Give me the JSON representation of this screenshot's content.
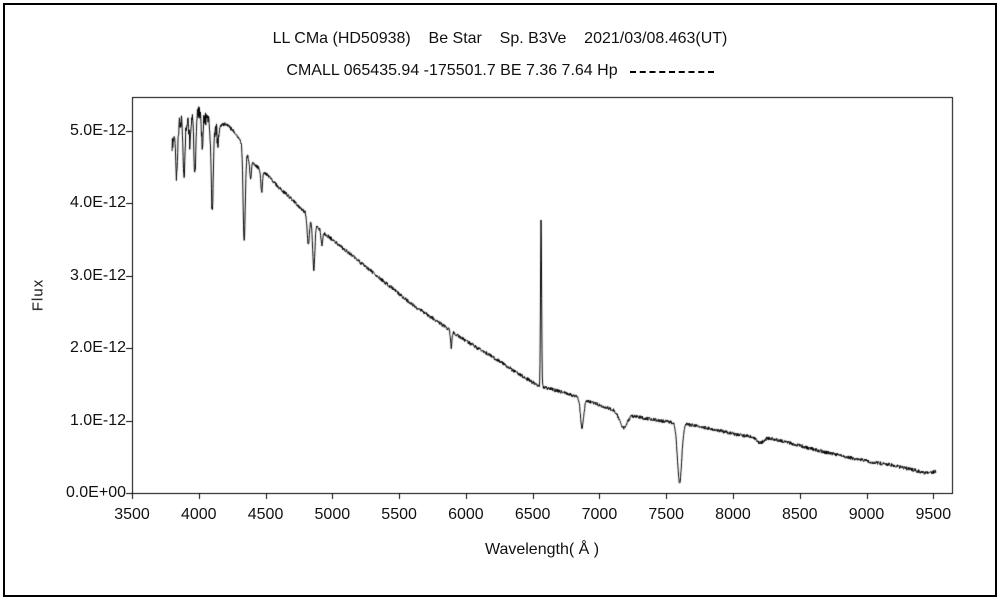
{
  "chart_data": {
    "type": "line",
    "title": "LL CMa (HD50938)    Be Star    Sp. B3Ve    2021/03/08.463(UT)",
    "subtitle": "CMALL 065435.94 -175501.7 BE 7.36 7.64 Hp",
    "legend": {
      "label": "Hp",
      "line_style": "dashed"
    },
    "xlabel": "Wavelength( Å )",
    "ylabel": "Flux",
    "line_color": "#000000",
    "grid": false,
    "xlim": [
      3500,
      9640
    ],
    "ylim_e12": [
      0,
      5.47
    ],
    "xticks": [
      3500,
      4000,
      4500,
      5000,
      5500,
      6000,
      6500,
      7000,
      7500,
      8000,
      8500,
      9000,
      9500
    ],
    "yticks": [
      {
        "value_e12": 0.0,
        "label": "0.0E+00"
      },
      {
        "value_e12": 1.0,
        "label": "1.0E-12"
      },
      {
        "value_e12": 2.0,
        "label": "2.0E-12"
      },
      {
        "value_e12": 3.0,
        "label": "3.0E-12"
      },
      {
        "value_e12": 4.0,
        "label": "4.0E-12"
      },
      {
        "value_e12": 5.0,
        "label": "5.0E-12"
      }
    ],
    "spectrum": {
      "wl_start": 3800,
      "wl_end": 9520,
      "step": 2.5,
      "flux_units_e12": "1.0E-12 per unit",
      "continuum_e12": [
        [
          3800,
          4.8
        ],
        [
          3830,
          5.05
        ],
        [
          3870,
          5.15
        ],
        [
          3910,
          5.1
        ],
        [
          3950,
          5.22
        ],
        [
          4000,
          5.28
        ],
        [
          4060,
          5.15
        ],
        [
          4130,
          5.05
        ],
        [
          4200,
          5.1
        ],
        [
          4260,
          5.0
        ],
        [
          4320,
          4.85
        ],
        [
          4380,
          4.6
        ],
        [
          4440,
          4.5
        ],
        [
          4520,
          4.38
        ],
        [
          4600,
          4.22
        ],
        [
          4700,
          4.05
        ],
        [
          4800,
          3.87
        ],
        [
          4900,
          3.65
        ],
        [
          5000,
          3.5
        ],
        [
          5100,
          3.35
        ],
        [
          5200,
          3.2
        ],
        [
          5300,
          3.05
        ],
        [
          5400,
          2.9
        ],
        [
          5500,
          2.75
        ],
        [
          5600,
          2.6
        ],
        [
          5700,
          2.48
        ],
        [
          5800,
          2.35
        ],
        [
          5900,
          2.22
        ],
        [
          6000,
          2.1
        ],
        [
          6100,
          1.99
        ],
        [
          6200,
          1.88
        ],
        [
          6300,
          1.76
        ],
        [
          6400,
          1.64
        ],
        [
          6500,
          1.53
        ],
        [
          6560,
          1.47
        ],
        [
          6650,
          1.43
        ],
        [
          6750,
          1.38
        ],
        [
          6850,
          1.32
        ],
        [
          6950,
          1.25
        ],
        [
          7050,
          1.18
        ],
        [
          7150,
          1.12
        ],
        [
          7250,
          1.07
        ],
        [
          7350,
          1.03
        ],
        [
          7450,
          1.0
        ],
        [
          7550,
          0.97
        ],
        [
          7650,
          0.95
        ],
        [
          7750,
          0.92
        ],
        [
          7850,
          0.88
        ],
        [
          7950,
          0.84
        ],
        [
          8050,
          0.8
        ],
        [
          8150,
          0.78
        ],
        [
          8250,
          0.76
        ],
        [
          8350,
          0.73
        ],
        [
          8450,
          0.68
        ],
        [
          8550,
          0.63
        ],
        [
          8650,
          0.58
        ],
        [
          8750,
          0.54
        ],
        [
          8850,
          0.5
        ],
        [
          8950,
          0.46
        ],
        [
          9050,
          0.42
        ],
        [
          9150,
          0.4
        ],
        [
          9250,
          0.36
        ],
        [
          9350,
          0.32
        ],
        [
          9450,
          0.27
        ],
        [
          9520,
          0.3
        ]
      ],
      "features": [
        {
          "center": 3835,
          "amp_e12": -0.7,
          "sigma": 7,
          "name": "H9 absorption"
        },
        {
          "center": 3889,
          "amp_e12": -0.8,
          "sigma": 7,
          "name": "H8 absorption"
        },
        {
          "center": 3934,
          "amp_e12": -0.35,
          "sigma": 6,
          "name": "Ca II K absorption"
        },
        {
          "center": 3970,
          "amp_e12": -0.9,
          "sigma": 7,
          "name": "H-epsilon absorption"
        },
        {
          "center": 4026,
          "amp_e12": -0.4,
          "sigma": 6,
          "name": "He I 4026 absorption"
        },
        {
          "center": 4101,
          "amp_e12": -1.2,
          "sigma": 8,
          "name": "H-delta absorption"
        },
        {
          "center": 4144,
          "amp_e12": -0.25,
          "sigma": 6,
          "name": "He I 4144 absorption"
        },
        {
          "center": 4340,
          "amp_e12": -1.3,
          "sigma": 8,
          "name": "H-gamma absorption"
        },
        {
          "center": 4388,
          "amp_e12": -0.25,
          "sigma": 6,
          "name": "He I 4388 absorption"
        },
        {
          "center": 4471,
          "amp_e12": -0.3,
          "sigma": 6,
          "name": "He I 4471 absorption"
        },
        {
          "center": 4820,
          "amp_e12": -0.4,
          "sigma": 8,
          "name": "absorption 4820"
        },
        {
          "center": 4861,
          "amp_e12": -0.65,
          "sigma": 8,
          "name": "H-beta absorption"
        },
        {
          "center": 4922,
          "amp_e12": -0.2,
          "sigma": 6,
          "name": "He I 4922 absorption"
        },
        {
          "center": 5890,
          "amp_e12": -0.22,
          "sigma": 5,
          "name": "Na I D absorption"
        },
        {
          "center": 6563,
          "amp_e12": 2.32,
          "sigma": 4,
          "name": "H-alpha emission spike (peak ~3.8E-12)"
        },
        {
          "center": 6870,
          "amp_e12": -0.4,
          "sigma": 12,
          "name": "telluric O2 B band"
        },
        {
          "center": 7180,
          "amp_e12": -0.2,
          "sigma": 28,
          "name": "telluric H2O band"
        },
        {
          "center": 7600,
          "amp_e12": -0.82,
          "sigma": 16,
          "name": "telluric O2 A band (dips to ~0.15E-12)"
        },
        {
          "center": 8200,
          "amp_e12": -0.08,
          "sigma": 25,
          "name": "shallow absorption 8200"
        }
      ],
      "noise": {
        "base_amp_e12": 0.025,
        "blue_amp_e12": 0.09,
        "blue_limit": 4150
      }
    }
  }
}
